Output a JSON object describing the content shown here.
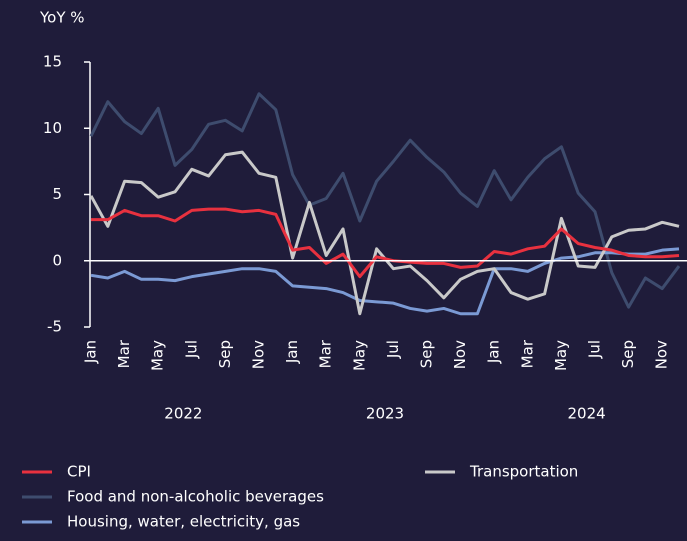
{
  "chart_data": {
    "type": "line",
    "y_axis_title": "YoY %",
    "categories": [
      "Jan",
      null,
      "Mar",
      null,
      "May",
      null,
      "Jul",
      null,
      "Sep",
      null,
      "Nov",
      null,
      "Jan",
      null,
      "Mar",
      null,
      "May",
      null,
      "Jul",
      null,
      "Sep",
      null,
      "Nov",
      null,
      "Jan",
      null,
      "Mar",
      null,
      "May",
      null,
      "Jul",
      null,
      "Sep",
      null,
      "Nov",
      null
    ],
    "year_labels": [
      "2022",
      "2023",
      "2024"
    ],
    "ylim": [
      -5,
      15
    ],
    "yticks": [
      -5,
      0,
      5,
      10,
      15
    ],
    "zero_line": true,
    "series": [
      {
        "name": "CPI",
        "color": "#e8313f",
        "values": [
          3.1,
          3.1,
          3.8,
          3.4,
          3.4,
          3.0,
          3.8,
          3.9,
          3.9,
          3.7,
          3.8,
          3.5,
          0.8,
          1.0,
          -0.2,
          0.5,
          -1.2,
          0.3,
          0.0,
          -0.1,
          -0.2,
          -0.2,
          -0.5,
          -0.4,
          0.7,
          0.5,
          0.9,
          1.1,
          2.4,
          1.3,
          1.0,
          0.8,
          0.4,
          0.3,
          0.3,
          0.4
        ]
      },
      {
        "name": "Food and non-alcoholic beverages",
        "color": "#3e4c6e",
        "values": [
          9.4,
          12.0,
          10.5,
          9.6,
          11.5,
          7.2,
          8.4,
          10.3,
          10.6,
          9.8,
          12.6,
          11.4,
          6.5,
          4.2,
          4.7,
          6.6,
          3.0,
          6.0,
          7.5,
          9.1,
          7.8,
          6.7,
          5.1,
          4.1,
          6.8,
          4.6,
          6.3,
          7.7,
          8.6,
          5.1,
          3.7,
          -0.9,
          -3.5,
          -1.3,
          -2.1,
          -0.4
        ]
      },
      {
        "name": "Housing, water, electricity, gas",
        "color": "#7b9ad4",
        "values": [
          -1.1,
          -1.3,
          -0.8,
          -1.4,
          -1.4,
          -1.5,
          -1.2,
          -1.0,
          -0.8,
          -0.6,
          -0.6,
          -0.8,
          -1.9,
          -2.0,
          -2.1,
          -2.4,
          -3.0,
          -3.1,
          -3.2,
          -3.6,
          -3.8,
          -3.6,
          -4.0,
          -4.0,
          -0.6,
          -0.6,
          -0.8,
          -0.2,
          0.2,
          0.3,
          0.6,
          0.6,
          0.5,
          0.5,
          0.8,
          0.9
        ]
      },
      {
        "name": "Transportation",
        "color": "#c9c9c9",
        "values": [
          4.9,
          2.6,
          6.0,
          5.9,
          4.8,
          5.2,
          6.9,
          6.4,
          8.0,
          8.2,
          6.6,
          6.3,
          0.2,
          4.4,
          0.4,
          2.4,
          -4.0,
          0.9,
          -0.6,
          -0.4,
          -1.5,
          -2.8,
          -1.4,
          -0.8,
          -0.6,
          -2.4,
          -2.9,
          -2.5,
          3.2,
          -0.4,
          -0.5,
          1.8,
          2.3,
          2.4,
          2.9,
          2.6
        ]
      }
    ]
  }
}
